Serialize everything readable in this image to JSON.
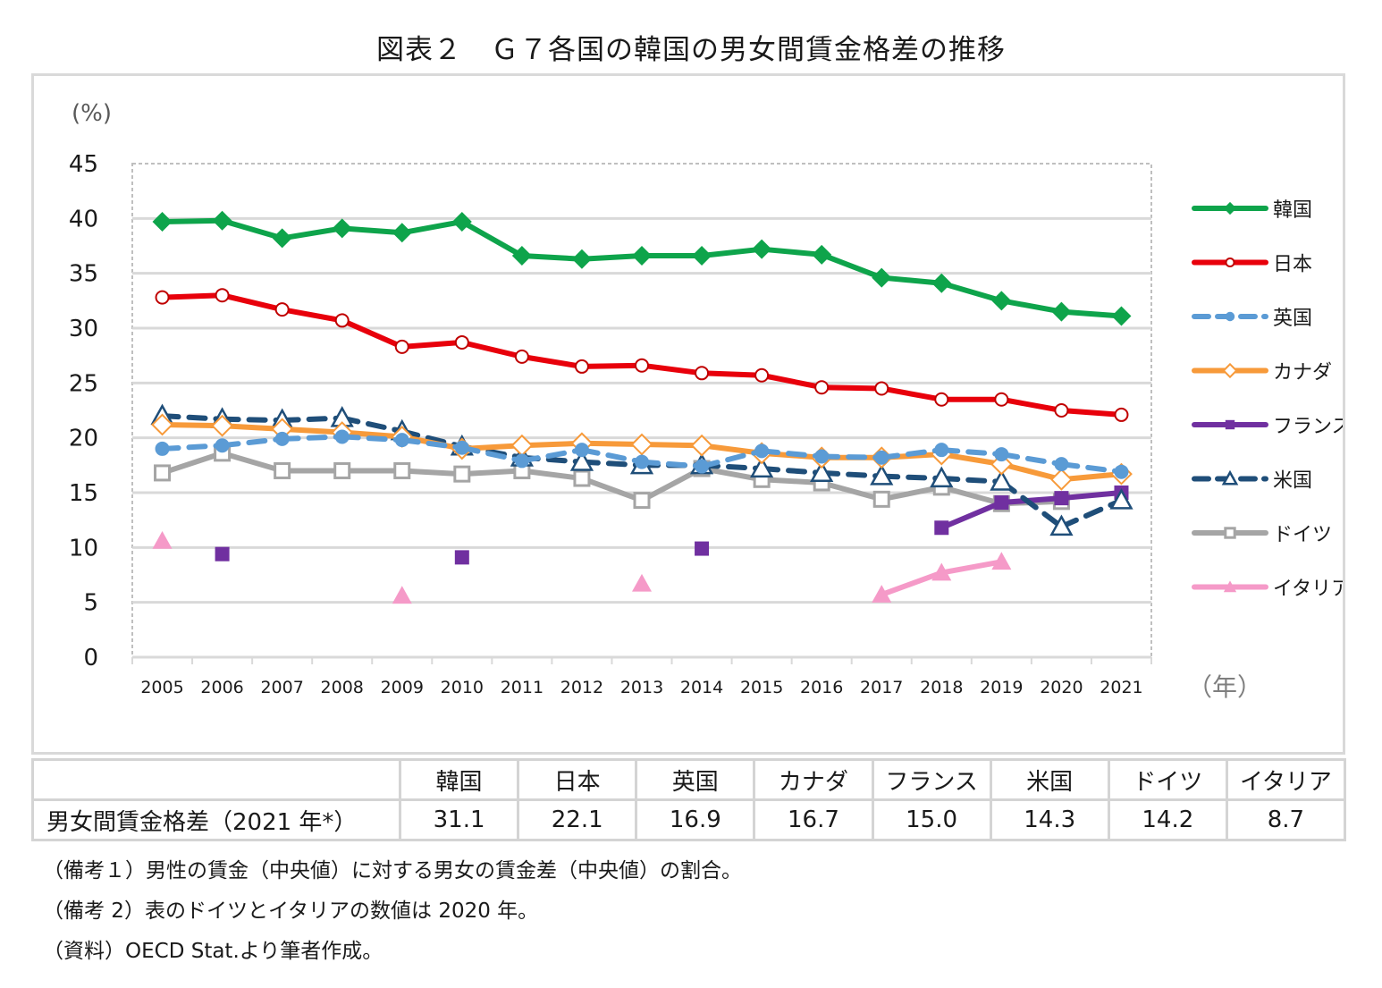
{
  "title": "図表２　Ｇ７各国の韓国の男女間賃金格差の推移",
  "chart_data": {
    "type": "line",
    "title": "図表２　Ｇ７各国の韓国の男女間賃金格差の推移",
    "ylabel": "(%)",
    "xlabel": "（年）",
    "ylim": [
      0,
      45
    ],
    "yticks": [
      0,
      5,
      10,
      15,
      20,
      25,
      30,
      35,
      40,
      45
    ],
    "grid": true,
    "legend_position": "right",
    "categories": [
      "2005",
      "2006",
      "2007",
      "2008",
      "2009",
      "2010",
      "2011",
      "2012",
      "2013",
      "2014",
      "2015",
      "2016",
      "2017",
      "2018",
      "2019",
      "2020",
      "2021"
    ],
    "series": [
      {
        "name": "韓国",
        "color": "#0ea44b",
        "dash": false,
        "marker": "diamond-filled",
        "values": [
          39.7,
          39.8,
          38.2,
          39.1,
          38.7,
          39.7,
          36.6,
          36.3,
          36.6,
          36.6,
          37.2,
          36.7,
          34.6,
          34.1,
          32.5,
          31.5,
          31.1
        ]
      },
      {
        "name": "日本",
        "color": "#e8000b",
        "dash": false,
        "marker": "circle-open",
        "values": [
          32.8,
          33.0,
          31.7,
          30.7,
          28.3,
          28.7,
          27.4,
          26.5,
          26.6,
          25.9,
          25.7,
          24.6,
          24.5,
          23.5,
          23.5,
          22.5,
          22.1
        ]
      },
      {
        "name": "英国",
        "color": "#5b9bd5",
        "dash": true,
        "marker": "circle-filled",
        "values": [
          19.0,
          19.3,
          19.9,
          20.1,
          19.8,
          19.1,
          17.9,
          18.9,
          17.8,
          17.4,
          18.8,
          18.3,
          18.2,
          18.9,
          18.5,
          17.6,
          16.9
        ]
      },
      {
        "name": "カナダ",
        "color": "#f79a3a",
        "dash": false,
        "marker": "diamond-open",
        "values": [
          21.2,
          21.1,
          20.8,
          20.5,
          20.1,
          19.0,
          19.3,
          19.5,
          19.4,
          19.3,
          18.6,
          18.2,
          18.2,
          18.5,
          17.6,
          16.2,
          16.7
        ]
      },
      {
        "name": "フランス",
        "color": "#7030a0",
        "dash": false,
        "marker": "square-filled",
        "values": [
          null,
          9.4,
          null,
          null,
          null,
          9.1,
          null,
          null,
          null,
          9.9,
          null,
          null,
          null,
          11.8,
          14.1,
          14.5,
          15.0
        ]
      },
      {
        "name": "米国",
        "color": "#1f4e79",
        "dash": true,
        "marker": "triangle-open",
        "values": [
          22.0,
          21.7,
          21.6,
          21.8,
          20.6,
          19.2,
          18.2,
          17.8,
          17.5,
          17.5,
          17.2,
          16.8,
          16.5,
          16.3,
          16.0,
          11.9,
          14.3
        ]
      },
      {
        "name": "ドイツ",
        "color": "#a5a5a5",
        "dash": false,
        "marker": "square-open",
        "values": [
          16.8,
          18.6,
          17.0,
          17.0,
          17.0,
          16.7,
          17.0,
          16.3,
          14.3,
          17.2,
          16.2,
          15.9,
          14.4,
          15.5,
          14.0,
          14.2,
          null
        ]
      },
      {
        "name": "イタリア",
        "color": "#f59ac8",
        "dash": false,
        "marker": "triangle-filled",
        "values": [
          10.6,
          null,
          null,
          null,
          5.6,
          null,
          null,
          null,
          6.7,
          null,
          null,
          null,
          5.7,
          7.7,
          8.7,
          null,
          null
        ]
      }
    ]
  },
  "table": {
    "headers": [
      "",
      "韓国",
      "日本",
      "英国",
      "カナダ",
      "フランス",
      "米国",
      "ドイツ",
      "イタリア"
    ],
    "row_label": "男女間賃金格差（2021 年*）",
    "values": [
      "31.1",
      "22.1",
      "16.9",
      "16.7",
      "15.0",
      "14.3",
      "14.2",
      "8.7"
    ]
  },
  "notes": [
    "（備考１）男性の賃金（中央値）に対する男女の賃金差（中央値）の割合。",
    "（備考 2）表のドイツとイタリアの数値は 2020 年。",
    "（資料）OECD Stat.より筆者作成。"
  ]
}
